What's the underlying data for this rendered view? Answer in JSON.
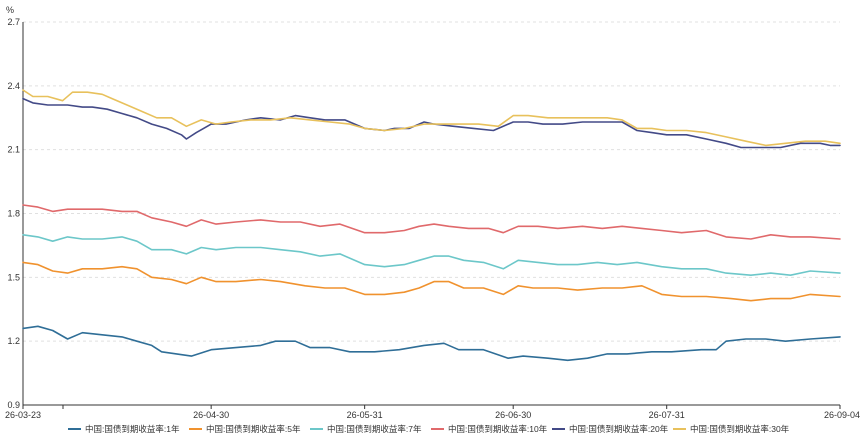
{
  "chart_data": {
    "type": "line",
    "ylabel": "%",
    "ylim": [
      0.9,
      2.7
    ],
    "yticks": [
      "0.9",
      "1.2",
      "1.5",
      "1.8",
      "2.1",
      "2.4",
      "2.7"
    ],
    "x_start": "26-03-23",
    "x_end": "26-09-04",
    "xticks": [
      "26-03-23",
      "26-04-30",
      "26-05-31",
      "26-06-30",
      "26-07-31",
      "26-09-04"
    ],
    "grid": true,
    "legend_position": "bottom",
    "series": [
      {
        "name": "中国:国债到期收益率:1年",
        "color": "#2f6e97",
        "points": [
          [
            "26-03-23",
            1.26
          ],
          [
            "26-03-26",
            1.27
          ],
          [
            "26-03-29",
            1.25
          ],
          [
            "26-04-01",
            1.21
          ],
          [
            "26-04-04",
            1.24
          ],
          [
            "26-04-08",
            1.23
          ],
          [
            "26-04-12",
            1.22
          ],
          [
            "26-04-15",
            1.2
          ],
          [
            "26-04-18",
            1.18
          ],
          [
            "26-04-20",
            1.15
          ],
          [
            "26-04-23",
            1.14
          ],
          [
            "26-04-26",
            1.13
          ],
          [
            "26-04-30",
            1.16
          ],
          [
            "26-05-05",
            1.17
          ],
          [
            "26-05-10",
            1.18
          ],
          [
            "26-05-13",
            1.2
          ],
          [
            "26-05-17",
            1.2
          ],
          [
            "26-05-20",
            1.17
          ],
          [
            "26-05-24",
            1.17
          ],
          [
            "26-05-28",
            1.15
          ],
          [
            "26-06-02",
            1.15
          ],
          [
            "26-06-07",
            1.16
          ],
          [
            "26-06-12",
            1.18
          ],
          [
            "26-06-16",
            1.19
          ],
          [
            "26-06-19",
            1.16
          ],
          [
            "26-06-24",
            1.16
          ],
          [
            "26-06-29",
            1.12
          ],
          [
            "26-07-02",
            1.13
          ],
          [
            "26-07-07",
            1.12
          ],
          [
            "26-07-11",
            1.11
          ],
          [
            "26-07-15",
            1.12
          ],
          [
            "26-07-19",
            1.14
          ],
          [
            "26-07-23",
            1.14
          ],
          [
            "26-07-28",
            1.15
          ],
          [
            "26-08-01",
            1.15
          ],
          [
            "26-08-07",
            1.16
          ],
          [
            "26-08-10",
            1.16
          ],
          [
            "26-08-12",
            1.2
          ],
          [
            "26-08-16",
            1.21
          ],
          [
            "26-08-20",
            1.21
          ],
          [
            "26-08-24",
            1.2
          ],
          [
            "26-08-29",
            1.21
          ],
          [
            "26-09-04",
            1.22
          ]
        ]
      },
      {
        "name": "中国:国债到期收益率:5年",
        "color": "#f0922e",
        "points": [
          [
            "26-03-23",
            1.57
          ],
          [
            "26-03-26",
            1.56
          ],
          [
            "26-03-29",
            1.53
          ],
          [
            "26-04-01",
            1.52
          ],
          [
            "26-04-04",
            1.54
          ],
          [
            "26-04-08",
            1.54
          ],
          [
            "26-04-12",
            1.55
          ],
          [
            "26-04-15",
            1.54
          ],
          [
            "26-04-18",
            1.5
          ],
          [
            "26-04-22",
            1.49
          ],
          [
            "26-04-25",
            1.47
          ],
          [
            "26-04-28",
            1.5
          ],
          [
            "26-05-01",
            1.48
          ],
          [
            "26-05-05",
            1.48
          ],
          [
            "26-05-10",
            1.49
          ],
          [
            "26-05-14",
            1.48
          ],
          [
            "26-05-19",
            1.46
          ],
          [
            "26-05-23",
            1.45
          ],
          [
            "26-05-27",
            1.45
          ],
          [
            "26-05-31",
            1.42
          ],
          [
            "26-06-04",
            1.42
          ],
          [
            "26-06-08",
            1.43
          ],
          [
            "26-06-11",
            1.45
          ],
          [
            "26-06-14",
            1.48
          ],
          [
            "26-06-17",
            1.48
          ],
          [
            "26-06-20",
            1.45
          ],
          [
            "26-06-24",
            1.45
          ],
          [
            "26-06-28",
            1.42
          ],
          [
            "26-07-01",
            1.46
          ],
          [
            "26-07-04",
            1.45
          ],
          [
            "26-07-09",
            1.45
          ],
          [
            "26-07-13",
            1.44
          ],
          [
            "26-07-18",
            1.45
          ],
          [
            "26-07-22",
            1.45
          ],
          [
            "26-07-26",
            1.46
          ],
          [
            "26-07-30",
            1.42
          ],
          [
            "26-08-03",
            1.41
          ],
          [
            "26-08-08",
            1.41
          ],
          [
            "26-08-13",
            1.4
          ],
          [
            "26-08-17",
            1.39
          ],
          [
            "26-08-21",
            1.4
          ],
          [
            "26-08-25",
            1.4
          ],
          [
            "26-08-29",
            1.42
          ],
          [
            "26-09-04",
            1.41
          ]
        ]
      },
      {
        "name": "中国:国债到期收益率:7年",
        "color": "#6cc7c9",
        "points": [
          [
            "26-03-23",
            1.7
          ],
          [
            "26-03-26",
            1.69
          ],
          [
            "26-03-29",
            1.67
          ],
          [
            "26-04-01",
            1.69
          ],
          [
            "26-04-04",
            1.68
          ],
          [
            "26-04-08",
            1.68
          ],
          [
            "26-04-12",
            1.69
          ],
          [
            "26-04-15",
            1.67
          ],
          [
            "26-04-18",
            1.63
          ],
          [
            "26-04-22",
            1.63
          ],
          [
            "26-04-25",
            1.61
          ],
          [
            "26-04-28",
            1.64
          ],
          [
            "26-05-01",
            1.63
          ],
          [
            "26-05-05",
            1.64
          ],
          [
            "26-05-10",
            1.64
          ],
          [
            "26-05-14",
            1.63
          ],
          [
            "26-05-18",
            1.62
          ],
          [
            "26-05-22",
            1.6
          ],
          [
            "26-05-26",
            1.61
          ],
          [
            "26-05-31",
            1.56
          ],
          [
            "26-06-04",
            1.55
          ],
          [
            "26-06-08",
            1.56
          ],
          [
            "26-06-11",
            1.58
          ],
          [
            "26-06-14",
            1.6
          ],
          [
            "26-06-17",
            1.6
          ],
          [
            "26-06-20",
            1.58
          ],
          [
            "26-06-24",
            1.57
          ],
          [
            "26-06-28",
            1.54
          ],
          [
            "26-07-01",
            1.58
          ],
          [
            "26-07-05",
            1.57
          ],
          [
            "26-07-09",
            1.56
          ],
          [
            "26-07-13",
            1.56
          ],
          [
            "26-07-17",
            1.57
          ],
          [
            "26-07-21",
            1.56
          ],
          [
            "26-07-25",
            1.57
          ],
          [
            "26-07-30",
            1.55
          ],
          [
            "26-08-03",
            1.54
          ],
          [
            "26-08-08",
            1.54
          ],
          [
            "26-08-12",
            1.52
          ],
          [
            "26-08-17",
            1.51
          ],
          [
            "26-08-21",
            1.52
          ],
          [
            "26-08-25",
            1.51
          ],
          [
            "26-08-29",
            1.53
          ],
          [
            "26-09-04",
            1.52
          ]
        ]
      },
      {
        "name": "中国:国债到期收益率:10年",
        "color": "#e0696b",
        "points": [
          [
            "26-03-23",
            1.84
          ],
          [
            "26-03-26",
            1.83
          ],
          [
            "26-03-29",
            1.81
          ],
          [
            "26-04-01",
            1.82
          ],
          [
            "26-04-04",
            1.82
          ],
          [
            "26-04-08",
            1.82
          ],
          [
            "26-04-12",
            1.81
          ],
          [
            "26-04-15",
            1.81
          ],
          [
            "26-04-18",
            1.78
          ],
          [
            "26-04-22",
            1.76
          ],
          [
            "26-04-25",
            1.74
          ],
          [
            "26-04-28",
            1.77
          ],
          [
            "26-05-01",
            1.75
          ],
          [
            "26-05-05",
            1.76
          ],
          [
            "26-05-10",
            1.77
          ],
          [
            "26-05-14",
            1.76
          ],
          [
            "26-05-18",
            1.76
          ],
          [
            "26-05-22",
            1.74
          ],
          [
            "26-05-26",
            1.75
          ],
          [
            "26-05-31",
            1.71
          ],
          [
            "26-06-04",
            1.71
          ],
          [
            "26-06-08",
            1.72
          ],
          [
            "26-06-11",
            1.74
          ],
          [
            "26-06-14",
            1.75
          ],
          [
            "26-06-17",
            1.74
          ],
          [
            "26-06-21",
            1.73
          ],
          [
            "26-06-25",
            1.73
          ],
          [
            "26-06-28",
            1.71
          ],
          [
            "26-07-01",
            1.74
          ],
          [
            "26-07-05",
            1.74
          ],
          [
            "26-07-09",
            1.73
          ],
          [
            "26-07-14",
            1.74
          ],
          [
            "26-07-18",
            1.73
          ],
          [
            "26-07-22",
            1.74
          ],
          [
            "26-07-26",
            1.73
          ],
          [
            "26-07-30",
            1.72
          ],
          [
            "26-08-03",
            1.71
          ],
          [
            "26-08-08",
            1.72
          ],
          [
            "26-08-12",
            1.69
          ],
          [
            "26-08-17",
            1.68
          ],
          [
            "26-08-21",
            1.7
          ],
          [
            "26-08-25",
            1.69
          ],
          [
            "26-08-29",
            1.69
          ],
          [
            "26-09-04",
            1.68
          ]
        ]
      },
      {
        "name": "中国:国债到期收益率:20年",
        "color": "#434a87",
        "points": [
          [
            "26-03-23",
            2.34
          ],
          [
            "26-03-25",
            2.32
          ],
          [
            "26-03-28",
            2.31
          ],
          [
            "26-04-01",
            2.31
          ],
          [
            "26-04-04",
            2.3
          ],
          [
            "26-04-06",
            2.3
          ],
          [
            "26-04-09",
            2.29
          ],
          [
            "26-04-12",
            2.27
          ],
          [
            "26-04-15",
            2.25
          ],
          [
            "26-04-18",
            2.22
          ],
          [
            "26-04-21",
            2.2
          ],
          [
            "26-04-24",
            2.17
          ],
          [
            "26-04-25",
            2.15
          ],
          [
            "26-04-27",
            2.18
          ],
          [
            "26-04-30",
            2.22
          ],
          [
            "26-05-03",
            2.22
          ],
          [
            "26-05-07",
            2.24
          ],
          [
            "26-05-10",
            2.25
          ],
          [
            "26-05-14",
            2.24
          ],
          [
            "26-05-17",
            2.26
          ],
          [
            "26-05-20",
            2.25
          ],
          [
            "26-05-23",
            2.24
          ],
          [
            "26-05-27",
            2.24
          ],
          [
            "26-05-31",
            2.2
          ],
          [
            "26-06-04",
            2.19
          ],
          [
            "26-06-06",
            2.2
          ],
          [
            "26-06-09",
            2.2
          ],
          [
            "26-06-12",
            2.23
          ],
          [
            "26-06-14",
            2.22
          ],
          [
            "26-06-18",
            2.21
          ],
          [
            "26-06-22",
            2.2
          ],
          [
            "26-06-26",
            2.19
          ],
          [
            "26-06-30",
            2.23
          ],
          [
            "26-07-03",
            2.23
          ],
          [
            "26-07-06",
            2.22
          ],
          [
            "26-07-10",
            2.22
          ],
          [
            "26-07-14",
            2.23
          ],
          [
            "26-07-18",
            2.23
          ],
          [
            "26-07-22",
            2.23
          ],
          [
            "26-07-25",
            2.19
          ],
          [
            "26-07-28",
            2.18
          ],
          [
            "26-07-31",
            2.17
          ],
          [
            "26-08-04",
            2.17
          ],
          [
            "26-08-08",
            2.15
          ],
          [
            "26-08-12",
            2.13
          ],
          [
            "26-08-15",
            2.11
          ],
          [
            "26-08-19",
            2.11
          ],
          [
            "26-08-23",
            2.11
          ],
          [
            "26-08-27",
            2.13
          ],
          [
            "26-08-31",
            2.13
          ],
          [
            "26-09-02",
            2.12
          ],
          [
            "26-09-04",
            2.12
          ]
        ]
      },
      {
        "name": "中国:国债到期收益率:30年",
        "color": "#e8c15c",
        "points": [
          [
            "26-03-23",
            2.38
          ],
          [
            "26-03-25",
            2.35
          ],
          [
            "26-03-28",
            2.35
          ],
          [
            "26-03-31",
            2.33
          ],
          [
            "26-04-02",
            2.37
          ],
          [
            "26-04-05",
            2.37
          ],
          [
            "26-04-08",
            2.36
          ],
          [
            "26-04-10",
            2.34
          ],
          [
            "26-04-13",
            2.31
          ],
          [
            "26-04-16",
            2.28
          ],
          [
            "26-04-19",
            2.25
          ],
          [
            "26-04-22",
            2.25
          ],
          [
            "26-04-25",
            2.21
          ],
          [
            "26-04-28",
            2.24
          ],
          [
            "26-05-01",
            2.22
          ],
          [
            "26-05-04",
            2.23
          ],
          [
            "26-05-08",
            2.24
          ],
          [
            "26-05-12",
            2.24
          ],
          [
            "26-05-16",
            2.25
          ],
          [
            "26-05-20",
            2.24
          ],
          [
            "26-05-24",
            2.23
          ],
          [
            "26-05-28",
            2.22
          ],
          [
            "26-05-31",
            2.2
          ],
          [
            "26-06-04",
            2.19
          ],
          [
            "26-06-08",
            2.2
          ],
          [
            "26-06-12",
            2.22
          ],
          [
            "26-06-15",
            2.22
          ],
          [
            "26-06-19",
            2.22
          ],
          [
            "26-06-23",
            2.22
          ],
          [
            "26-06-27",
            2.21
          ],
          [
            "26-06-30",
            2.26
          ],
          [
            "26-07-03",
            2.26
          ],
          [
            "26-07-07",
            2.25
          ],
          [
            "26-07-11",
            2.25
          ],
          [
            "26-07-15",
            2.25
          ],
          [
            "26-07-19",
            2.25
          ],
          [
            "26-07-22",
            2.24
          ],
          [
            "26-07-25",
            2.2
          ],
          [
            "26-07-28",
            2.2
          ],
          [
            "26-07-31",
            2.19
          ],
          [
            "26-08-04",
            2.19
          ],
          [
            "26-08-08",
            2.18
          ],
          [
            "26-08-12",
            2.16
          ],
          [
            "26-08-16",
            2.14
          ],
          [
            "26-08-20",
            2.12
          ],
          [
            "26-08-24",
            2.13
          ],
          [
            "26-08-28",
            2.14
          ],
          [
            "26-09-01",
            2.14
          ],
          [
            "26-09-04",
            2.13
          ]
        ]
      }
    ]
  }
}
